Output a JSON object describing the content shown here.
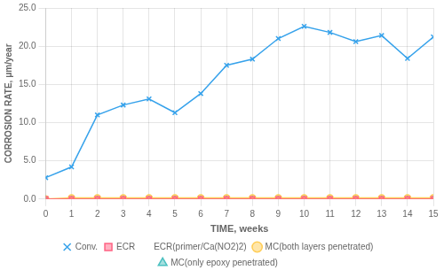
{
  "chart_data": {
    "type": "line",
    "xlabel": "TIME, weeks",
    "ylabel": "CORROSION RATE, μm/year",
    "x": [
      0,
      1,
      2,
      3,
      4,
      5,
      6,
      7,
      8,
      9,
      10,
      11,
      12,
      13,
      14,
      15
    ],
    "series": [
      {
        "name": "Conv.",
        "marker": "x",
        "values": [
          2.8,
          4.2,
          11.0,
          12.3,
          13.1,
          11.3,
          13.8,
          17.5,
          18.3,
          21.0,
          22.6,
          21.8,
          20.6,
          21.4,
          18.4,
          21.2
        ]
      },
      {
        "name": "ECR",
        "marker": "square",
        "values": [
          0.0,
          0.0,
          0.0,
          0.0,
          0.0,
          0.0,
          0.0,
          0.0,
          0.0,
          0.0,
          0.0,
          0.0,
          0.0,
          0.0,
          0.0,
          0.0
        ]
      },
      {
        "name": "ECR(primer/Ca(NO2)2)",
        "marker": "none",
        "values": [
          0.0,
          0.0,
          0.0,
          0.0,
          0.0,
          0.0,
          0.0,
          0.0,
          0.0,
          0.0,
          0.0,
          0.0,
          0.0,
          0.0,
          0.0,
          0.0
        ]
      },
      {
        "name": "MC(both layers penetrated)",
        "marker": "circle",
        "values": [
          0.0,
          0.15,
          0.15,
          0.15,
          0.15,
          0.15,
          0.15,
          0.15,
          0.15,
          0.15,
          0.15,
          0.15,
          0.15,
          0.15,
          0.15,
          0.15
        ]
      },
      {
        "name": "MC(only epoxy penetrated)",
        "marker": "triangle",
        "values": [
          0.0,
          0.0,
          0.0,
          0.0,
          0.0,
          0.0,
          0.0,
          0.0,
          0.0,
          0.0,
          0.0,
          0.0,
          0.0,
          0.0,
          0.0,
          0.0
        ]
      }
    ],
    "xlim": [
      0,
      15
    ],
    "xticks": [
      0,
      1,
      2,
      3,
      4,
      5,
      6,
      7,
      8,
      9,
      10,
      11,
      12,
      13,
      14,
      15
    ],
    "ylim": [
      0,
      25
    ],
    "yticks": [
      {
        "value": 0,
        "label": "0.0"
      },
      {
        "value": 5,
        "label": "5.0"
      },
      {
        "value": 10,
        "label": "10.0"
      },
      {
        "value": 15,
        "label": "15.0"
      },
      {
        "value": 20,
        "label": "20.0"
      },
      {
        "value": 25,
        "label": "25.0"
      }
    ],
    "grid": true,
    "legend": "bottom"
  }
}
